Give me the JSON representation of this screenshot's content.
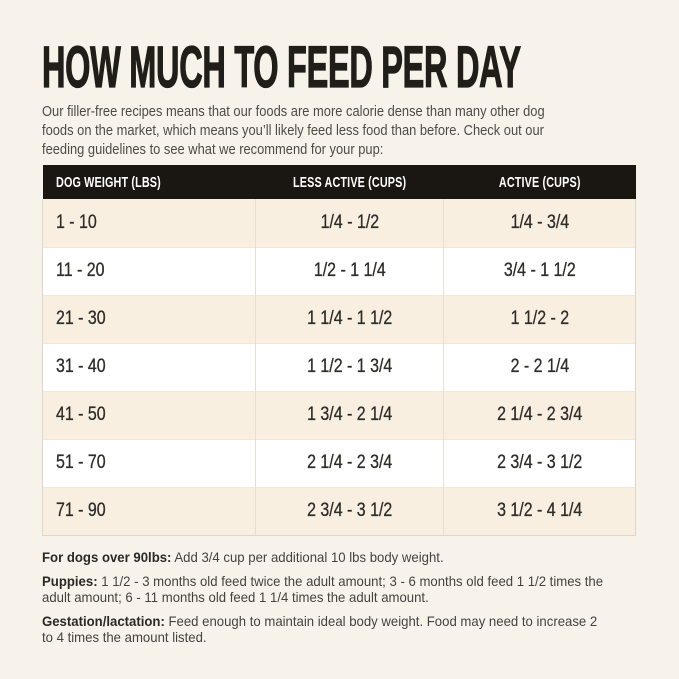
{
  "colors": {
    "page_background": "#f7f3eb",
    "table_header_background": "#1a1712",
    "table_header_text": "#ffffff",
    "row_stripe_cream": "#f8efe1",
    "row_stripe_white": "#ffffff",
    "title_text": "#211e1a",
    "body_text": "#4d4b47"
  },
  "header": {
    "title": "HOW MUCH TO FEED PER DAY",
    "intro_lines": [
      "Our filler-free recipes means that our foods are more calorie dense than many other dog",
      "foods on the market, which means you’ll likely feed less food than before. Check out our",
      "feeding guidelines to see what we recommend for your pup:"
    ]
  },
  "table": {
    "columns": [
      "DOG WEIGHT (LBS)",
      "LESS ACTIVE (CUPS)",
      "ACTIVE (CUPS)"
    ],
    "rows": [
      {
        "weight": "1 - 10",
        "less_active": "1/4 - 1/2",
        "active": "1/4 - 3/4"
      },
      {
        "weight": "11 - 20",
        "less_active": "1/2 - 1 1/4",
        "active": "3/4 - 1 1/2"
      },
      {
        "weight": "21 - 30",
        "less_active": "1 1/4 - 1 1/2",
        "active": "1 1/2 - 2"
      },
      {
        "weight": "31 - 40",
        "less_active": "1 1/2 - 1 3/4",
        "active": "2 - 2 1/4"
      },
      {
        "weight": "41 - 50",
        "less_active": "1 3/4 - 2 1/4",
        "active": "2 1/4 - 2 3/4"
      },
      {
        "weight": "51 - 70",
        "less_active": "2 1/4 - 2 3/4",
        "active": "2 3/4 - 3 1/2"
      },
      {
        "weight": "71 - 90",
        "less_active": "2 3/4 - 3 1/2",
        "active": "3 1/2 - 4 1/4"
      }
    ]
  },
  "notes": [
    {
      "label": "For dogs over 90lbs:",
      "lines": [
        "Add 3/4 cup per additional 10 lbs body weight."
      ]
    },
    {
      "label": "Puppies:",
      "lines": [
        "1 1/2 - 3 months old feed twice the adult amount; 3 - 6 months old feed 1 1/2 times the",
        "adult amount; 6 - 11 months old feed 1 1/4 times the adult amount."
      ]
    },
    {
      "label": "Gestation/lactation:",
      "lines": [
        "Feed enough to maintain ideal body weight. Food may need to increase 2",
        "to 4 times the amount listed."
      ]
    }
  ]
}
